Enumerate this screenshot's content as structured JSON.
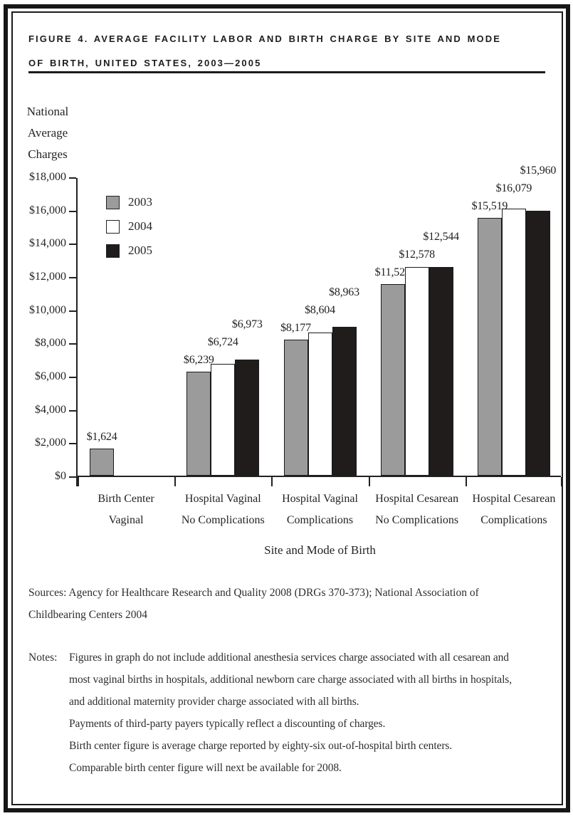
{
  "title": {
    "line1": "FIGURE 4. AVERAGE FACILITY LABOR AND BIRTH CHARGE BY SITE AND MODE",
    "line2": "OF BIRTH, UNITED STATES, 2003—2005"
  },
  "chart_data": {
    "type": "bar",
    "ylabel_lines": [
      "National",
      "Average",
      "Charges"
    ],
    "xlabel": "Site and Mode of Birth",
    "ylim": [
      0,
      18000
    ],
    "ytick_step": 2000,
    "ytick_labels": [
      "$0",
      "$2,000",
      "$4,000",
      "$6,000",
      "$8,000",
      "$10,000",
      "$12,000",
      "$14,000",
      "$16,000",
      "$18,000"
    ],
    "categories": [
      [
        "Birth Center",
        "Vaginal"
      ],
      [
        "Hospital Vaginal",
        "No Complications"
      ],
      [
        "Hospital Vaginal",
        "Complications"
      ],
      [
        "Hospital Cesarean",
        "No Complications"
      ],
      [
        "Hospital Cesarean",
        "Complications"
      ]
    ],
    "series": [
      {
        "name": "2003",
        "color": "#9b9b9b",
        "values": [
          1624,
          6239,
          8177,
          11524,
          15519
        ]
      },
      {
        "name": "2004",
        "color": "#ffffff",
        "values": [
          null,
          6724,
          8604,
          12578,
          16079
        ]
      },
      {
        "name": "2005",
        "color": "#211c1c",
        "values": [
          null,
          6973,
          8963,
          12544,
          15960
        ]
      }
    ],
    "value_label_prefix": "$",
    "value_labels": {
      "2003": [
        "$1,624",
        "$6,239",
        "$8,177",
        "$11,524",
        "$15,519"
      ],
      "2004": [
        null,
        "$6,724",
        "$8,604",
        "$12,578",
        "$16,079"
      ],
      "2005": [
        null,
        "$6,973",
        "$8,963",
        "$12,544",
        "$15,960"
      ]
    },
    "legend_position": "top-left-inside",
    "grid": false,
    "axis_color": "#222222",
    "text_color": "#242424"
  },
  "sources": {
    "lines": [
      "Sources: Agency for Healthcare Research and Quality 2008 (DRGs 370-373); National Association of",
      "Childbearing Centers 2004"
    ]
  },
  "notes": {
    "label": "Notes:",
    "lines": [
      "Figures in graph do not include additional anesthesia services charge associated with all cesarean and",
      "most vaginal births in hospitals, additional newborn care charge associated with all births in hospitals,",
      "and additional maternity provider charge associated with all births.",
      "Payments of third-party payers typically reflect a discounting of charges.",
      "Birth center figure is average charge reported by eighty-six out-of-hospital birth centers.",
      "Comparable birth center figure will next be available for 2008."
    ]
  }
}
